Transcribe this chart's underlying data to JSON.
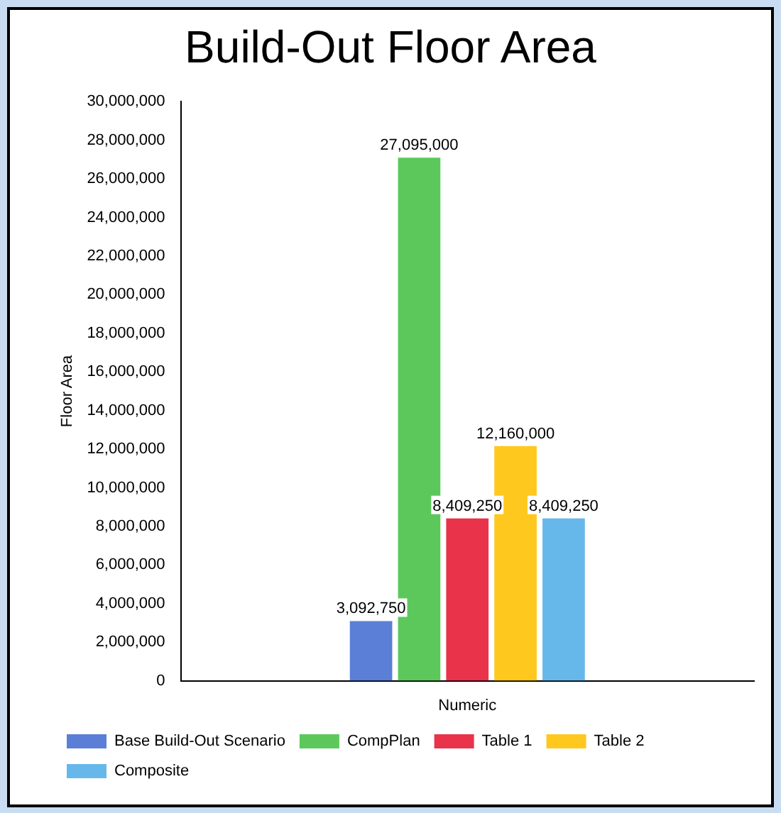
{
  "chart_data": {
    "type": "bar",
    "title": "Build-Out Floor Area",
    "ylabel": "Floor Area",
    "categories": [
      "Numeric"
    ],
    "series": [
      {
        "name": "Base Build-Out Scenario",
        "color": "#5b7fd6",
        "values": [
          3092750
        ],
        "value_labels": [
          "3,092,750"
        ]
      },
      {
        "name": "CompPlan",
        "color": "#5cc85c",
        "values": [
          27095000
        ],
        "value_labels": [
          "27,095,000"
        ]
      },
      {
        "name": "Table 1",
        "color": "#e8334a",
        "values": [
          8409250
        ],
        "value_labels": [
          "8,409,250"
        ]
      },
      {
        "name": "Table 2",
        "color": "#ffc81e",
        "values": [
          12160000
        ],
        "value_labels": [
          "12,160,000"
        ]
      },
      {
        "name": "Composite",
        "color": "#66b8ea",
        "values": [
          8409250
        ],
        "value_labels": [
          "8,409,250"
        ]
      }
    ],
    "ylim": [
      0,
      30000000
    ],
    "yticks": [
      0,
      {
        "value": 2000000,
        "label": "2,000,000"
      },
      {
        "value": 4000000,
        "label": "4,000,000"
      },
      {
        "value": 6000000,
        "label": "6,000,000"
      },
      {
        "value": 8000000,
        "label": "8,000,000"
      },
      {
        "value": 10000000,
        "label": "10,000,000"
      },
      {
        "value": 12000000,
        "label": "12,000,000"
      },
      {
        "value": 14000000,
        "label": "14,000,000"
      },
      {
        "value": 16000000,
        "label": "16,000,000"
      },
      {
        "value": 18000000,
        "label": "18,000,000"
      },
      {
        "value": 20000000,
        "label": "20,000,000"
      },
      {
        "value": 22000000,
        "label": "22,000,000"
      },
      {
        "value": 24000000,
        "label": "24,000,000"
      },
      {
        "value": 26000000,
        "label": "26,000,000"
      },
      {
        "value": 28000000,
        "label": "28,000,000"
      },
      {
        "value": 30000000,
        "label": "30,000,000"
      }
    ],
    "grid": false,
    "legend": "bottom"
  }
}
